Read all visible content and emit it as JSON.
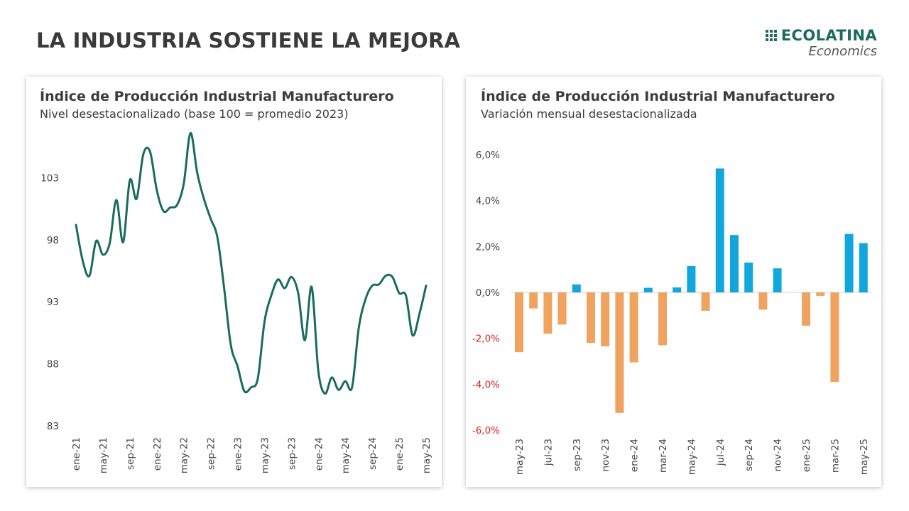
{
  "header": {
    "title": "LA INDUSTRIA SOSTIENE LA MEJORA",
    "logo_name": "ECOLATINA",
    "logo_sub": "Economics"
  },
  "colors": {
    "line": "#1a6b5e",
    "bar_positive": "#12a7dc",
    "bar_negative": "#f0a35e",
    "negative_label": "#e02020",
    "axis_text": "#444444"
  },
  "chart_data": [
    {
      "type": "line",
      "title": "Índice de Producción Industrial Manufacturero",
      "subtitle": "Nivel desestacionalizado (base 100 = promedio 2023)",
      "y_ticks": [
        83,
        88,
        93,
        98,
        103
      ],
      "ylim": [
        83,
        106
      ],
      "x_tick_labels": [
        "ene-21",
        "may-21",
        "sep-21",
        "ene-22",
        "may-22",
        "sep-22",
        "ene-23",
        "may-23",
        "sep-23",
        "ene-24",
        "may-24",
        "sep-24",
        "ene-25",
        "may-25"
      ],
      "x": [
        "ene-21",
        "feb-21",
        "mar-21",
        "abr-21",
        "may-21",
        "jun-21",
        "jul-21",
        "ago-21",
        "sep-21",
        "oct-21",
        "nov-21",
        "dic-21",
        "ene-22",
        "feb-22",
        "mar-22",
        "abr-22",
        "may-22",
        "jun-22",
        "jul-22",
        "ago-22",
        "sep-22",
        "oct-22",
        "nov-22",
        "dic-22",
        "ene-23",
        "feb-23",
        "mar-23",
        "abr-23",
        "may-23",
        "jun-23",
        "jul-23",
        "ago-23",
        "sep-23",
        "oct-23",
        "nov-23",
        "dic-23",
        "ene-24",
        "feb-24",
        "mar-24",
        "abr-24",
        "may-24",
        "jun-24",
        "jul-24",
        "ago-24",
        "sep-24",
        "oct-24",
        "nov-24",
        "dic-24",
        "ene-25",
        "feb-25",
        "mar-25",
        "abr-25",
        "may-25"
      ],
      "values": [
        99.2,
        96.3,
        95.1,
        97.9,
        96.8,
        97.7,
        101.2,
        97.8,
        102.8,
        101.3,
        104.9,
        105.1,
        102.0,
        100.3,
        100.6,
        100.8,
        102.5,
        106.6,
        103.4,
        101.3,
        99.7,
        98.2,
        94.1,
        89.5,
        87.8,
        85.8,
        86.1,
        86.8,
        91.4,
        93.5,
        94.8,
        94.1,
        95.0,
        93.7,
        89.9,
        94.2,
        87.4,
        85.6,
        86.9,
        85.9,
        86.6,
        86.1,
        90.9,
        93.2,
        94.3,
        94.4,
        95.1,
        95.0,
        93.7,
        93.5,
        90.3,
        92.0,
        94.3
      ],
      "series": [
        {
          "name": "",
          "color": "#1a6b5e"
        }
      ],
      "grid": false
    },
    {
      "type": "bar",
      "title": "Índice de Producción Industrial Manufacturero",
      "subtitle": "Variación mensual desestacionalizada",
      "y_ticks": [
        "6,0%",
        "4,0%",
        "2,0%",
        "0,0%",
        "-2,0%",
        "-4,0%",
        "-6,0%"
      ],
      "ylim": [
        -6,
        6
      ],
      "categories": [
        "may-23",
        "jun-23",
        "jul-23",
        "ago-23",
        "sep-23",
        "oct-23",
        "nov-23",
        "dic-23",
        "ene-24",
        "feb-24",
        "mar-24",
        "abr-24",
        "may-24",
        "jun-24",
        "jul-24",
        "ago-24",
        "sep-24",
        "oct-24",
        "nov-24",
        "dic-24",
        "ene-25",
        "feb-25",
        "mar-25",
        "abr-25",
        "may-25"
      ],
      "x_tick_labels": [
        "may-23",
        "jul-23",
        "sep-23",
        "nov-23",
        "ene-24",
        "mar-24",
        "may-24",
        "jul-24",
        "sep-24",
        "nov-24",
        "ene-25",
        "mar-25",
        "may-25"
      ],
      "values": [
        -2.6,
        -0.7,
        -1.8,
        -1.4,
        0.35,
        -2.2,
        -2.35,
        -5.25,
        -3.05,
        0.2,
        -2.3,
        0.22,
        1.15,
        -0.8,
        5.4,
        2.5,
        1.3,
        -0.75,
        1.05,
        0.0,
        -1.45,
        -0.15,
        -3.9,
        2.55,
        2.15
      ],
      "series": [
        {
          "name": ""
        }
      ],
      "grid": false
    }
  ]
}
